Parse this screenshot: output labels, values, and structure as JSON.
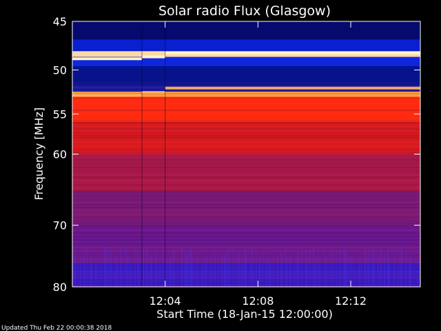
{
  "chart_data": {
    "type": "heatmap",
    "title": "Solar radio Flux (Glasgow)",
    "xlabel": "Start Time (18-Jan-15 12:00:00)",
    "ylabel": "Frequency [MHz]",
    "x_unit": "minutes after 12:00",
    "xlim": [
      0,
      15
    ],
    "ylim_log_mhz": [
      45,
      80
    ],
    "y_scale": "log",
    "y_inverted": true,
    "x_ticks": [
      {
        "value": 4,
        "label": "12:04"
      },
      {
        "value": 8,
        "label": "12:08"
      },
      {
        "value": 12,
        "label": "12:12"
      }
    ],
    "y_ticks": [
      {
        "value": 45,
        "label": "45"
      },
      {
        "value": 50,
        "label": "50"
      },
      {
        "value": 55,
        "label": "55"
      },
      {
        "value": 60,
        "label": "60"
      },
      {
        "value": 70,
        "label": "70"
      },
      {
        "value": 80,
        "label": "80"
      }
    ],
    "bands": [
      {
        "f_start": 45.0,
        "f_end": 46.8,
        "color": "#050a6e"
      },
      {
        "f_start": 46.8,
        "f_end": 48.0,
        "color": "#0a1fd0"
      },
      {
        "f_start": 48.0,
        "f_end": 48.6,
        "color": "#ffd8a0"
      },
      {
        "f_start": 48.6,
        "f_end": 49.6,
        "color": "#0f26e0"
      },
      {
        "f_start": 49.6,
        "f_end": 51.6,
        "color": "#061490"
      },
      {
        "f_start": 51.6,
        "f_end": 52.4,
        "color": "#1a1aa0"
      },
      {
        "f_start": 52.4,
        "f_end": 53.0,
        "color": "#ff9a40"
      },
      {
        "f_start": 53.0,
        "f_end": 56.0,
        "color": "#ff2a10"
      },
      {
        "f_start": 56.0,
        "f_end": 60.0,
        "color": "#d81a20"
      },
      {
        "f_start": 60.0,
        "f_end": 65.0,
        "color": "#a8184a"
      },
      {
        "f_start": 65.0,
        "f_end": 70.0,
        "color": "#7a1a78"
      },
      {
        "f_start": 70.0,
        "f_end": 76.0,
        "color": "#6a1890"
      },
      {
        "f_start": 76.0,
        "f_end": 80.0,
        "color": "#3a1ac0"
      }
    ],
    "bright_lines": [
      {
        "t_start": 0,
        "t_end": 3,
        "f": 48.8,
        "color": "#fff2c8"
      },
      {
        "t_start": 3,
        "t_end": 4,
        "f": 48.6,
        "color": "#fff2c8"
      },
      {
        "t_start": 4,
        "t_end": 15,
        "f": 48.2,
        "color": "#fff2c8"
      },
      {
        "t_start": 0,
        "t_end": 3,
        "f": 52.8,
        "color": "#ffb060"
      },
      {
        "t_start": 3,
        "t_end": 4,
        "f": 52.5,
        "color": "#ffb060"
      },
      {
        "t_start": 4,
        "t_end": 15,
        "f": 52.0,
        "color": "#ffb060"
      }
    ]
  },
  "footer": {
    "updated": "Updated Thu Feb 22 00:00:38 2018"
  },
  "colors": {
    "background": "#000000",
    "axis": "#ffffff",
    "text": "#ffffff"
  }
}
